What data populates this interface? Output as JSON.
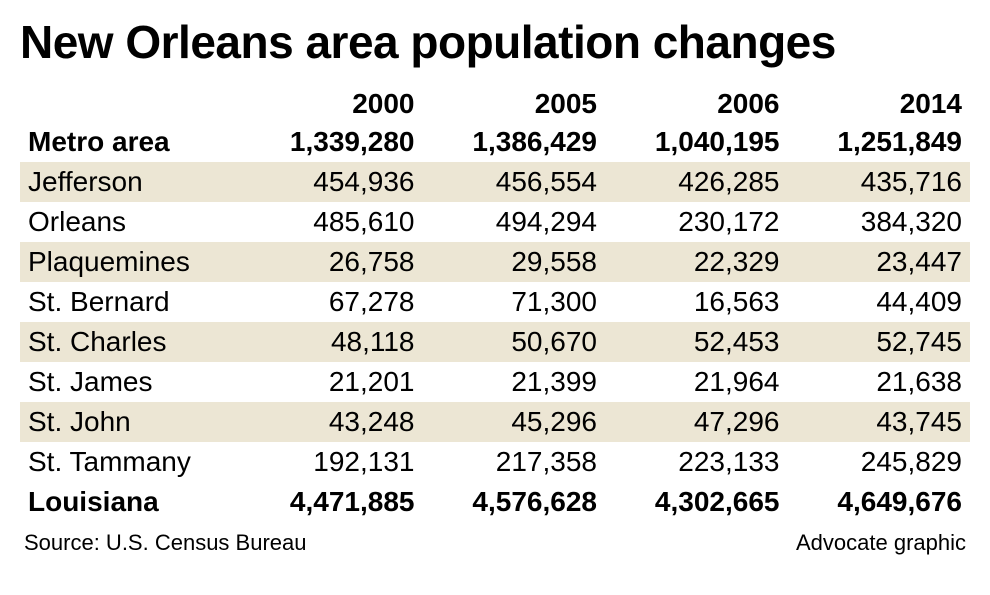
{
  "title": "New Orleans area population changes",
  "type": "table",
  "background_color": "#ffffff",
  "stripe_color": "#ece6d4",
  "text_color": "#000000",
  "title_fontsize": 46,
  "cell_fontsize": 28,
  "footer_fontsize": 22,
  "columns": [
    "",
    "2000",
    "2005",
    "2006",
    "2014"
  ],
  "rows": [
    {
      "label": "Metro area",
      "values": [
        "1,339,280",
        "1,386,429",
        "1,040,195",
        "1,251,849"
      ],
      "bold": true,
      "stripe": false
    },
    {
      "label": "Jefferson",
      "values": [
        "454,936",
        "456,554",
        "426,285",
        "435,716"
      ],
      "bold": false,
      "stripe": true
    },
    {
      "label": "Orleans",
      "values": [
        "485,610",
        "494,294",
        "230,172",
        "384,320"
      ],
      "bold": false,
      "stripe": false
    },
    {
      "label": "Plaquemines",
      "values": [
        "26,758",
        "29,558",
        "22,329",
        "23,447"
      ],
      "bold": false,
      "stripe": true
    },
    {
      "label": "St. Bernard",
      "values": [
        "67,278",
        "71,300",
        "16,563",
        "44,409"
      ],
      "bold": false,
      "stripe": false
    },
    {
      "label": "St. Charles",
      "values": [
        "48,118",
        "50,670",
        "52,453",
        "52,745"
      ],
      "bold": false,
      "stripe": true
    },
    {
      "label": "St. James",
      "values": [
        "21,201",
        "21,399",
        "21,964",
        "21,638"
      ],
      "bold": false,
      "stripe": false
    },
    {
      "label": "St. John",
      "values": [
        "43,248",
        "45,296",
        "47,296",
        "43,745"
      ],
      "bold": false,
      "stripe": true
    },
    {
      "label": "St. Tammany",
      "values": [
        "192,131",
        "217,358",
        "223,133",
        "245,829"
      ],
      "bold": false,
      "stripe": false
    },
    {
      "label": "Louisiana",
      "values": [
        "4,471,885",
        "4,576,628",
        "4,302,665",
        "4,649,676"
      ],
      "bold": true,
      "stripe": false
    }
  ],
  "source": "Source: U.S. Census Bureau",
  "credit": "Advocate graphic"
}
